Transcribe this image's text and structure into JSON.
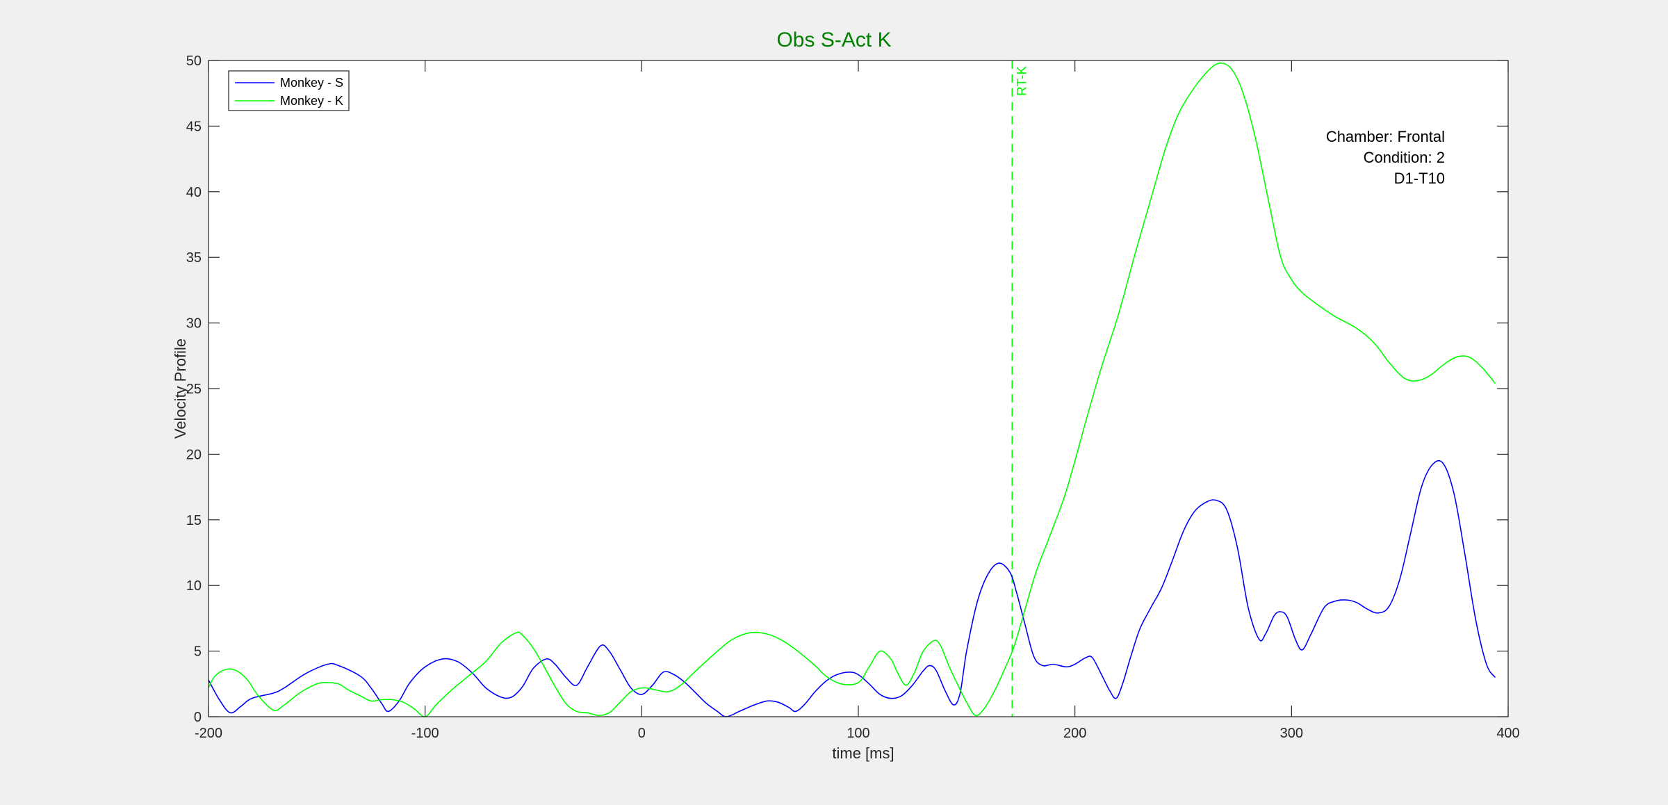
{
  "chart_data": {
    "type": "line",
    "title": "Obs S-Act K",
    "title_color": "#008000",
    "xlabel": "time [ms]",
    "ylabel": "Velocity Profile",
    "xlim": [
      -200,
      400
    ],
    "ylim": [
      0,
      50
    ],
    "xticks": [
      -200,
      -100,
      0,
      100,
      200,
      300,
      400
    ],
    "yticks": [
      0,
      5,
      10,
      15,
      20,
      25,
      30,
      35,
      40,
      45,
      50
    ],
    "xtick_labels": [
      "-200",
      "-100",
      "0",
      "100",
      "200",
      "300",
      "400"
    ],
    "ytick_labels": [
      "0",
      "5",
      "10",
      "15",
      "20",
      "25",
      "30",
      "35",
      "40",
      "45",
      "50"
    ],
    "grid": false,
    "legend_position": "top-left",
    "series": [
      {
        "name": "Monkey - S",
        "color": "#0000ff",
        "points": [
          [
            -200,
            2.8
          ],
          [
            -195,
            1.3
          ],
          [
            -190,
            0.3
          ],
          [
            -185,
            0.8
          ],
          [
            -180,
            1.4
          ],
          [
            -170,
            1.8
          ],
          [
            -165,
            2.2
          ],
          [
            -155,
            3.3
          ],
          [
            -145,
            4.0
          ],
          [
            -140,
            3.9
          ],
          [
            -130,
            3.1
          ],
          [
            -125,
            2.2
          ],
          [
            -120,
            1.0
          ],
          [
            -117,
            0.4
          ],
          [
            -112,
            1.2
          ],
          [
            -107,
            2.6
          ],
          [
            -100,
            3.8
          ],
          [
            -92,
            4.4
          ],
          [
            -85,
            4.2
          ],
          [
            -78,
            3.3
          ],
          [
            -72,
            2.2
          ],
          [
            -65,
            1.5
          ],
          [
            -60,
            1.5
          ],
          [
            -55,
            2.3
          ],
          [
            -50,
            3.7
          ],
          [
            -44,
            4.4
          ],
          [
            -40,
            4.0
          ],
          [
            -35,
            3.0
          ],
          [
            -30,
            2.4
          ],
          [
            -25,
            3.8
          ],
          [
            -19,
            5.4
          ],
          [
            -15,
            5.0
          ],
          [
            -10,
            3.6
          ],
          [
            -5,
            2.2
          ],
          [
            0,
            1.7
          ],
          [
            5,
            2.4
          ],
          [
            10,
            3.4
          ],
          [
            15,
            3.2
          ],
          [
            20,
            2.6
          ],
          [
            25,
            1.8
          ],
          [
            30,
            1.0
          ],
          [
            35,
            0.4
          ],
          [
            39,
            0.0
          ],
          [
            45,
            0.4
          ],
          [
            52,
            0.9
          ],
          [
            58,
            1.2
          ],
          [
            63,
            1.1
          ],
          [
            68,
            0.7
          ],
          [
            71,
            0.4
          ],
          [
            75,
            0.9
          ],
          [
            80,
            1.9
          ],
          [
            85,
            2.7
          ],
          [
            90,
            3.2
          ],
          [
            96,
            3.4
          ],
          [
            100,
            3.2
          ],
          [
            105,
            2.5
          ],
          [
            110,
            1.7
          ],
          [
            115,
            1.4
          ],
          [
            120,
            1.6
          ],
          [
            125,
            2.4
          ],
          [
            130,
            3.5
          ],
          [
            133,
            3.9
          ],
          [
            136,
            3.5
          ],
          [
            140,
            2.0
          ],
          [
            144,
            0.9
          ],
          [
            147,
            1.8
          ],
          [
            150,
            5.0
          ],
          [
            155,
            8.8
          ],
          [
            160,
            10.9
          ],
          [
            165,
            11.7
          ],
          [
            170,
            11.0
          ],
          [
            173,
            9.5
          ],
          [
            177,
            7.0
          ],
          [
            181,
            4.6
          ],
          [
            185,
            3.9
          ],
          [
            190,
            4.0
          ],
          [
            196,
            3.8
          ],
          [
            200,
            4.0
          ],
          [
            205,
            4.5
          ],
          [
            208,
            4.5
          ],
          [
            212,
            3.3
          ],
          [
            216,
            2.0
          ],
          [
            219,
            1.4
          ],
          [
            222,
            2.5
          ],
          [
            226,
            4.7
          ],
          [
            230,
            6.7
          ],
          [
            235,
            8.3
          ],
          [
            240,
            9.8
          ],
          [
            245,
            11.9
          ],
          [
            250,
            14.1
          ],
          [
            255,
            15.6
          ],
          [
            260,
            16.3
          ],
          [
            265,
            16.5
          ],
          [
            270,
            15.8
          ],
          [
            275,
            12.9
          ],
          [
            280,
            8.3
          ],
          [
            285,
            5.9
          ],
          [
            288,
            6.3
          ],
          [
            292,
            7.7
          ],
          [
            295,
            8.0
          ],
          [
            298,
            7.6
          ],
          [
            302,
            5.8
          ],
          [
            305,
            5.1
          ],
          [
            309,
            6.3
          ],
          [
            315,
            8.3
          ],
          [
            320,
            8.8
          ],
          [
            325,
            8.9
          ],
          [
            330,
            8.7
          ],
          [
            335,
            8.2
          ],
          [
            340,
            7.9
          ],
          [
            345,
            8.4
          ],
          [
            350,
            10.5
          ],
          [
            355,
            14.0
          ],
          [
            360,
            17.5
          ],
          [
            365,
            19.2
          ],
          [
            370,
            19.3
          ],
          [
            375,
            17.0
          ],
          [
            380,
            12.4
          ],
          [
            385,
            7.4
          ],
          [
            390,
            4.0
          ],
          [
            394,
            3.0
          ]
        ]
      },
      {
        "name": "Monkey - K",
        "color": "#00ff00",
        "points": [
          [
            -200,
            2.2
          ],
          [
            -197,
            3.1
          ],
          [
            -192,
            3.6
          ],
          [
            -187,
            3.5
          ],
          [
            -182,
            2.8
          ],
          [
            -177,
            1.6
          ],
          [
            -170,
            0.5
          ],
          [
            -165,
            0.9
          ],
          [
            -158,
            1.8
          ],
          [
            -150,
            2.5
          ],
          [
            -145,
            2.6
          ],
          [
            -140,
            2.5
          ],
          [
            -135,
            2.0
          ],
          [
            -130,
            1.6
          ],
          [
            -125,
            1.2
          ],
          [
            -120,
            1.3
          ],
          [
            -115,
            1.3
          ],
          [
            -110,
            1.1
          ],
          [
            -105,
            0.6
          ],
          [
            -100,
            0.0
          ],
          [
            -95,
            0.9
          ],
          [
            -88,
            2.0
          ],
          [
            -80,
            3.1
          ],
          [
            -72,
            4.2
          ],
          [
            -65,
            5.6
          ],
          [
            -58,
            6.4
          ],
          [
            -55,
            6.2
          ],
          [
            -50,
            5.2
          ],
          [
            -45,
            3.8
          ],
          [
            -40,
            2.3
          ],
          [
            -35,
            1.0
          ],
          [
            -30,
            0.4
          ],
          [
            -25,
            0.3
          ],
          [
            -20,
            0.1
          ],
          [
            -15,
            0.3
          ],
          [
            -10,
            1.1
          ],
          [
            -5,
            1.9
          ],
          [
            0,
            2.2
          ],
          [
            5,
            2.1
          ],
          [
            12,
            1.9
          ],
          [
            18,
            2.4
          ],
          [
            25,
            3.5
          ],
          [
            35,
            5.0
          ],
          [
            42,
            5.9
          ],
          [
            50,
            6.4
          ],
          [
            58,
            6.3
          ],
          [
            65,
            5.8
          ],
          [
            72,
            5.0
          ],
          [
            80,
            3.9
          ],
          [
            85,
            3.1
          ],
          [
            92,
            2.5
          ],
          [
            100,
            2.6
          ],
          [
            105,
            3.8
          ],
          [
            110,
            5.0
          ],
          [
            115,
            4.4
          ],
          [
            118,
            3.4
          ],
          [
            122,
            2.4
          ],
          [
            126,
            3.4
          ],
          [
            130,
            5.0
          ],
          [
            135,
            5.8
          ],
          [
            138,
            5.4
          ],
          [
            142,
            3.8
          ],
          [
            146,
            2.4
          ],
          [
            150,
            1.1
          ],
          [
            154,
            0.1
          ],
          [
            158,
            0.6
          ],
          [
            163,
            2.0
          ],
          [
            168,
            3.8
          ],
          [
            172,
            5.4
          ],
          [
            177,
            8.2
          ],
          [
            182,
            11.0
          ],
          [
            188,
            13.6
          ],
          [
            195,
            16.7
          ],
          [
            200,
            19.5
          ],
          [
            205,
            22.5
          ],
          [
            212,
            26.5
          ],
          [
            220,
            30.6
          ],
          [
            228,
            35.4
          ],
          [
            236,
            40.0
          ],
          [
            242,
            43.4
          ],
          [
            248,
            46.0
          ],
          [
            255,
            47.9
          ],
          [
            262,
            49.3
          ],
          [
            267,
            49.8
          ],
          [
            272,
            49.4
          ],
          [
            277,
            47.8
          ],
          [
            283,
            44.3
          ],
          [
            290,
            38.8
          ],
          [
            295,
            35.0
          ],
          [
            300,
            33.3
          ],
          [
            305,
            32.3
          ],
          [
            312,
            31.4
          ],
          [
            320,
            30.5
          ],
          [
            330,
            29.6
          ],
          [
            338,
            28.5
          ],
          [
            345,
            27.0
          ],
          [
            352,
            25.8
          ],
          [
            358,
            25.6
          ],
          [
            364,
            26.0
          ],
          [
            370,
            26.8
          ],
          [
            376,
            27.4
          ],
          [
            382,
            27.4
          ],
          [
            388,
            26.6
          ],
          [
            394,
            25.4
          ]
        ]
      }
    ],
    "markers": [
      {
        "x": 171,
        "label": "RT-K",
        "color": "#00ff00",
        "style": "dashed"
      }
    ],
    "annotations": [
      "Chamber: Frontal",
      "Condition: 2",
      "D1-T10"
    ]
  }
}
